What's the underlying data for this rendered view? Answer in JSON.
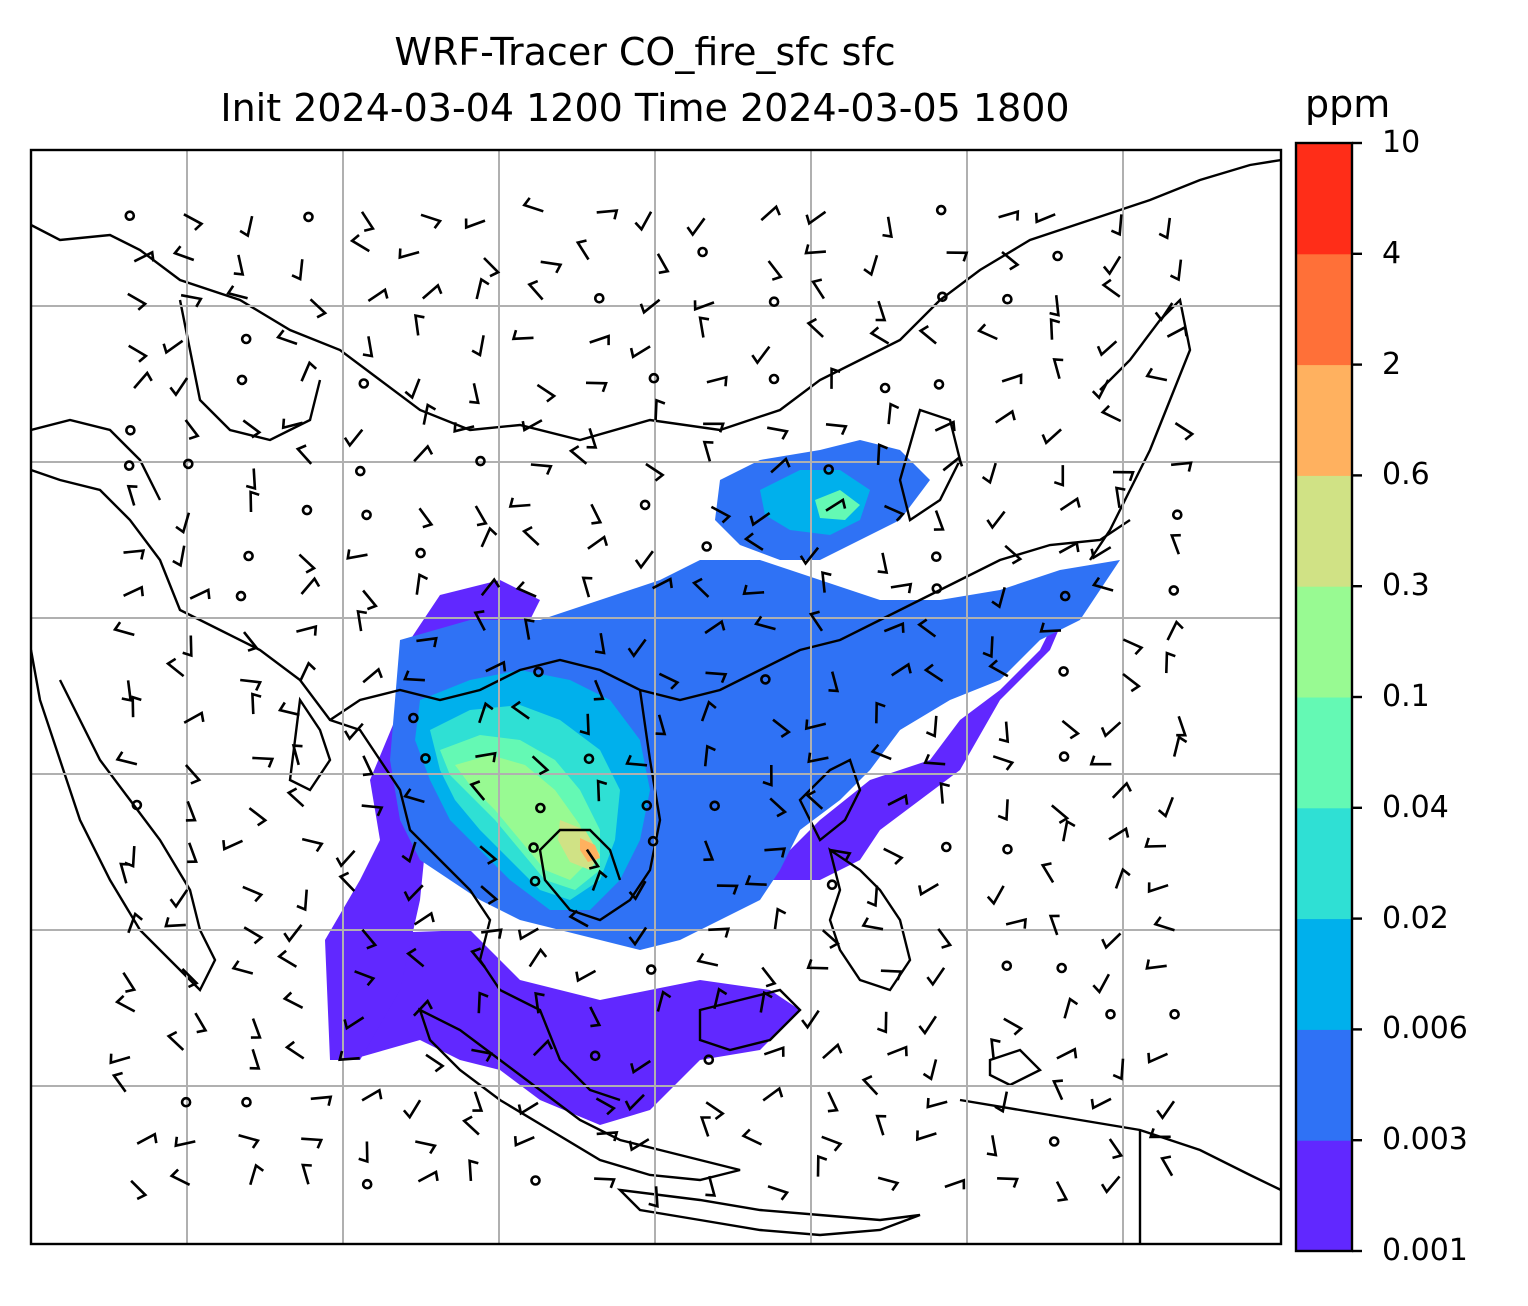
{
  "title": {
    "line1": "WRF-Tracer CO_fire_sfc sfc",
    "line2": "Init 2024-03-04 1200 Time 2024-03-05 1800"
  },
  "colorbar": {
    "unit": "ppm",
    "levels": [
      "0.001",
      "0.003",
      "0.006",
      "0.02",
      "0.04",
      "0.1",
      "0.3",
      "0.6",
      "2",
      "4",
      "10"
    ],
    "colors": [
      "#6128ff",
      "#2f72f5",
      "#00b0ec",
      "#2fe0d4",
      "#64f9b4",
      "#98fa92",
      "#d0e285",
      "#ffb15f",
      "#ff7038",
      "#ff2d18"
    ]
  },
  "map": {
    "gridlines": true,
    "gridline_color": "#b0b0b0",
    "coastline_color": "#000000",
    "wind_barbs_color": "#000000"
  }
}
